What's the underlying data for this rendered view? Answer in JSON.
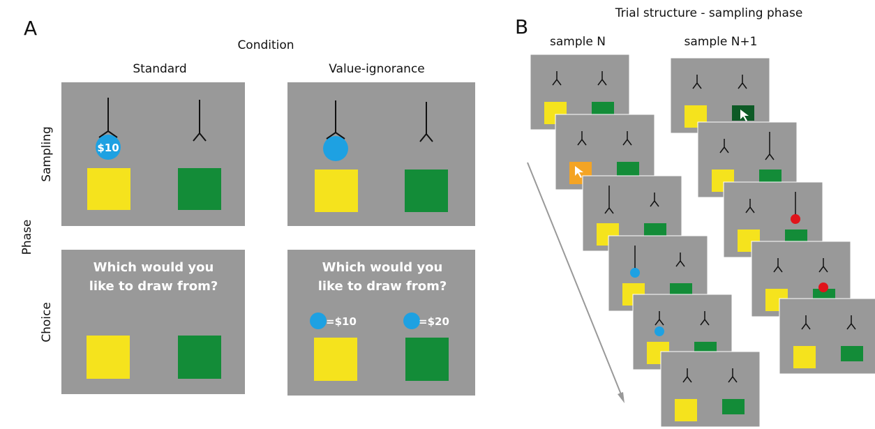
{
  "panel_a": {
    "label": "A",
    "condition_label": "Condition",
    "columns": [
      "Standard",
      "Value-ignorance"
    ],
    "phase_label": "Phase",
    "rows": [
      "Sampling",
      "Choice"
    ],
    "sampling_token": "$10",
    "choice_prompt_lines": [
      "Which would you",
      "like to draw from?"
    ],
    "value_keys": [
      "=$10",
      "=$20"
    ]
  },
  "panel_b": {
    "label": "B",
    "title": "Trial structure - sampling phase",
    "columns": [
      "sample N",
      "sample N+1"
    ]
  }
}
